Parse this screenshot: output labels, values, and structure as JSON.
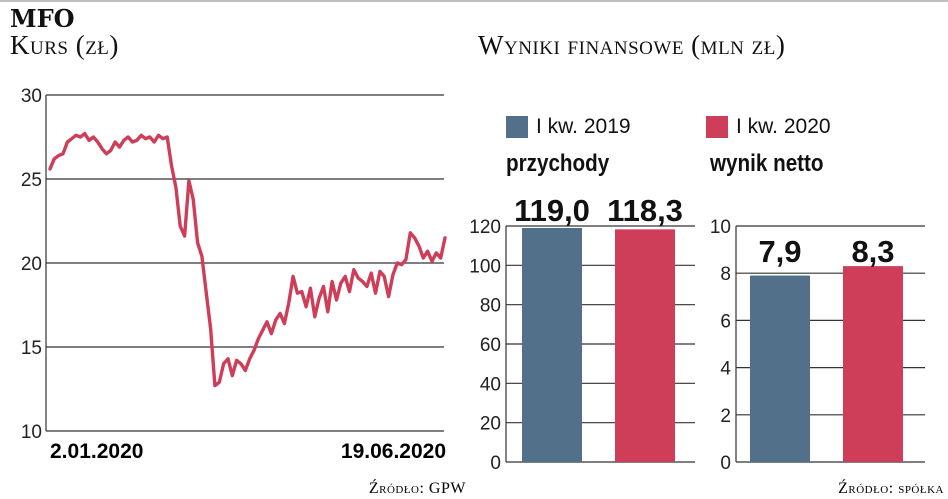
{
  "header": {
    "ticker": "MFO",
    "left_subtitle": "Kurs (zł)",
    "right_title": "Wyniki finansowe (mln zł)",
    "left_source": "Źródło: GPW",
    "right_source": "Źródło: spółka"
  },
  "legend": {
    "items": [
      {
        "label": "I kw. 2019",
        "color": "#52708a"
      },
      {
        "label": "I kw. 2020",
        "color": "#cf3e58"
      }
    ]
  },
  "chart_data": [
    {
      "type": "line",
      "title": "Kurs (zł)",
      "x_start_label": "2.01.2020",
      "x_end_label": "19.06.2020",
      "ylim": [
        10,
        30
      ],
      "yticks": [
        10,
        15,
        20,
        25,
        30
      ],
      "grid": true,
      "series_color": "#cf3e58",
      "series": [
        {
          "values": [
            25.6,
            26.2,
            26.4,
            26.5,
            27.2,
            27.4,
            27.6,
            27.5,
            27.7,
            27.3,
            27.5,
            27.2,
            26.8,
            26.5,
            26.7,
            27.2,
            26.9,
            27.3,
            27.5,
            27.2,
            27.3,
            27.6,
            27.4,
            27.5,
            27.2,
            27.6,
            27.4,
            27.5,
            25.8,
            24.5,
            22.2,
            21.6,
            24.9,
            23.8,
            21.2,
            20.4,
            18.2,
            16.1,
            12.7,
            12.9,
            14.0,
            14.3,
            13.3,
            14.2,
            14.0,
            13.6,
            14.3,
            14.8,
            15.5,
            16.0,
            16.5,
            15.8,
            16.6,
            17.0,
            16.4,
            17.6,
            19.2,
            18.2,
            18.3,
            17.4,
            18.5,
            16.8,
            17.9,
            18.6,
            17.1,
            18.9,
            17.8,
            18.8,
            19.2,
            18.3,
            19.6,
            19.1,
            18.9,
            18.6,
            19.4,
            18.2,
            19.5,
            19.2,
            18.0,
            19.3,
            20.0,
            19.9,
            20.2,
            21.8,
            21.5,
            21.0,
            20.3,
            20.7,
            20.1,
            20.6,
            20.3,
            21.5
          ]
        }
      ]
    },
    {
      "type": "bar",
      "title": "przychody",
      "categories": [
        "I kw. 2019",
        "I kw. 2020"
      ],
      "values": [
        119.0,
        118.3
      ],
      "labels": [
        "119,0",
        "118,3"
      ],
      "ylim": [
        0,
        120
      ],
      "yticks": [
        0,
        20,
        40,
        60,
        80,
        100,
        120
      ],
      "colors": [
        "#52708a",
        "#cf3e58"
      ]
    },
    {
      "type": "bar",
      "title": "wynik netto",
      "categories": [
        "I kw. 2019",
        "I kw. 2020"
      ],
      "values": [
        7.9,
        8.3
      ],
      "labels": [
        "7,9",
        "8,3"
      ],
      "ylim": [
        0,
        10
      ],
      "yticks": [
        0,
        2,
        4,
        6,
        8,
        10
      ],
      "colors": [
        "#52708a",
        "#cf3e58"
      ]
    }
  ]
}
